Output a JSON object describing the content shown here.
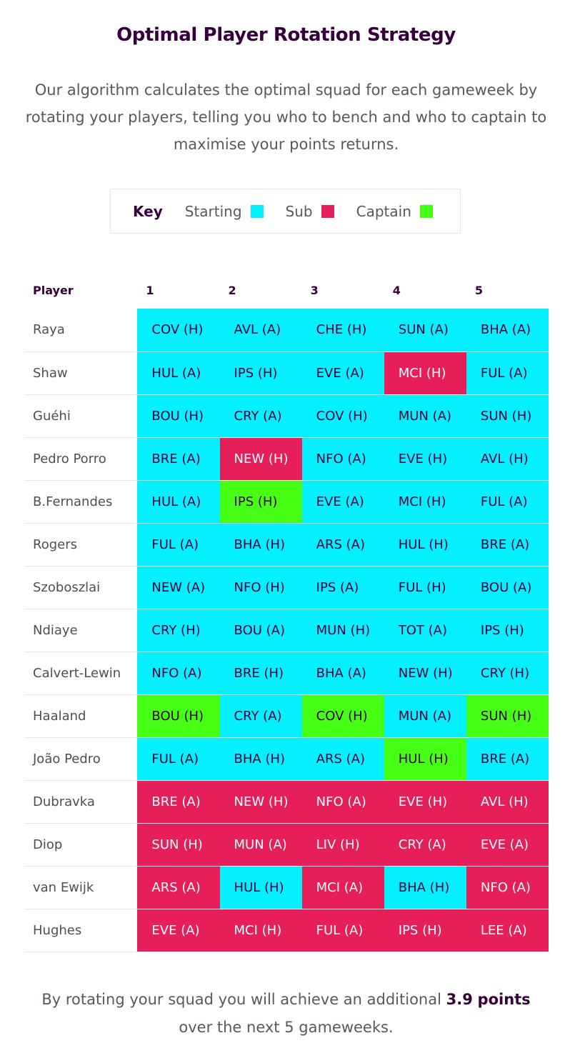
{
  "title": "Optimal Player Rotation Strategy",
  "intro": "Our algorithm calculates the optimal squad for each gameweek by rotating your players, telling you who to bench and who to captain to maximise your points returns.",
  "key": {
    "label": "Key",
    "items": [
      {
        "label": "Starting",
        "color": "#05f0ff"
      },
      {
        "label": "Sub",
        "color": "#e61f5a"
      },
      {
        "label": "Captain",
        "color": "#45ff14"
      }
    ]
  },
  "colors": {
    "starting": "#05f0ff",
    "sub": "#e61f5a",
    "captain": "#45ff14"
  },
  "table": {
    "headers": [
      "Player",
      "1",
      "2",
      "3",
      "4",
      "5"
    ],
    "rows": [
      {
        "player": "Raya",
        "cells": [
          {
            "fixture": "COV (H)",
            "status": "starting"
          },
          {
            "fixture": "AVL (A)",
            "status": "starting"
          },
          {
            "fixture": "CHE (H)",
            "status": "starting"
          },
          {
            "fixture": "SUN (A)",
            "status": "starting"
          },
          {
            "fixture": "BHA (A)",
            "status": "starting"
          }
        ]
      },
      {
        "player": "Shaw",
        "cells": [
          {
            "fixture": "HUL (A)",
            "status": "starting"
          },
          {
            "fixture": "IPS (H)",
            "status": "starting"
          },
          {
            "fixture": "EVE (A)",
            "status": "starting"
          },
          {
            "fixture": "MCI (H)",
            "status": "sub"
          },
          {
            "fixture": "FUL (A)",
            "status": "starting"
          }
        ]
      },
      {
        "player": "Guéhi",
        "cells": [
          {
            "fixture": "BOU (H)",
            "status": "starting"
          },
          {
            "fixture": "CRY (A)",
            "status": "starting"
          },
          {
            "fixture": "COV (H)",
            "status": "starting"
          },
          {
            "fixture": "MUN (A)",
            "status": "starting"
          },
          {
            "fixture": "SUN (H)",
            "status": "starting"
          }
        ]
      },
      {
        "player": "Pedro Porro",
        "cells": [
          {
            "fixture": "BRE (A)",
            "status": "starting"
          },
          {
            "fixture": "NEW (H)",
            "status": "sub"
          },
          {
            "fixture": "NFO (A)",
            "status": "starting"
          },
          {
            "fixture": "EVE (H)",
            "status": "starting"
          },
          {
            "fixture": "AVL (H)",
            "status": "starting"
          }
        ]
      },
      {
        "player": "B.Fernandes",
        "cells": [
          {
            "fixture": "HUL (A)",
            "status": "starting"
          },
          {
            "fixture": "IPS (H)",
            "status": "captain"
          },
          {
            "fixture": "EVE (A)",
            "status": "starting"
          },
          {
            "fixture": "MCI (H)",
            "status": "starting"
          },
          {
            "fixture": "FUL (A)",
            "status": "starting"
          }
        ]
      },
      {
        "player": "Rogers",
        "cells": [
          {
            "fixture": "FUL (A)",
            "status": "starting"
          },
          {
            "fixture": "BHA (H)",
            "status": "starting"
          },
          {
            "fixture": "ARS (A)",
            "status": "starting"
          },
          {
            "fixture": "HUL (H)",
            "status": "starting"
          },
          {
            "fixture": "BRE (A)",
            "status": "starting"
          }
        ]
      },
      {
        "player": "Szoboszlai",
        "cells": [
          {
            "fixture": "NEW (A)",
            "status": "starting"
          },
          {
            "fixture": "NFO (H)",
            "status": "starting"
          },
          {
            "fixture": "IPS (A)",
            "status": "starting"
          },
          {
            "fixture": "FUL (H)",
            "status": "starting"
          },
          {
            "fixture": "BOU (A)",
            "status": "starting"
          }
        ]
      },
      {
        "player": "Ndiaye",
        "cells": [
          {
            "fixture": "CRY (H)",
            "status": "starting"
          },
          {
            "fixture": "BOU (A)",
            "status": "starting"
          },
          {
            "fixture": "MUN (H)",
            "status": "starting"
          },
          {
            "fixture": "TOT (A)",
            "status": "starting"
          },
          {
            "fixture": "IPS (H)",
            "status": "starting"
          }
        ]
      },
      {
        "player": "Calvert-Lewin",
        "cells": [
          {
            "fixture": "NFO (A)",
            "status": "starting"
          },
          {
            "fixture": "BRE (H)",
            "status": "starting"
          },
          {
            "fixture": "BHA (A)",
            "status": "starting"
          },
          {
            "fixture": "NEW (H)",
            "status": "starting"
          },
          {
            "fixture": "CRY (H)",
            "status": "starting"
          }
        ]
      },
      {
        "player": "Haaland",
        "cells": [
          {
            "fixture": "BOU (H)",
            "status": "captain"
          },
          {
            "fixture": "CRY (A)",
            "status": "starting"
          },
          {
            "fixture": "COV (H)",
            "status": "captain"
          },
          {
            "fixture": "MUN (A)",
            "status": "starting"
          },
          {
            "fixture": "SUN (H)",
            "status": "captain"
          }
        ]
      },
      {
        "player": "João Pedro",
        "cells": [
          {
            "fixture": "FUL (A)",
            "status": "starting"
          },
          {
            "fixture": "BHA (H)",
            "status": "starting"
          },
          {
            "fixture": "ARS (A)",
            "status": "starting"
          },
          {
            "fixture": "HUL (H)",
            "status": "captain"
          },
          {
            "fixture": "BRE (A)",
            "status": "starting"
          }
        ]
      },
      {
        "player": "Dubravka",
        "cells": [
          {
            "fixture": "BRE (A)",
            "status": "sub"
          },
          {
            "fixture": "NEW (H)",
            "status": "sub"
          },
          {
            "fixture": "NFO (A)",
            "status": "sub"
          },
          {
            "fixture": "EVE (H)",
            "status": "sub"
          },
          {
            "fixture": "AVL (H)",
            "status": "sub"
          }
        ]
      },
      {
        "player": "Diop",
        "cells": [
          {
            "fixture": "SUN (H)",
            "status": "sub"
          },
          {
            "fixture": "MUN (A)",
            "status": "sub"
          },
          {
            "fixture": "LIV (H)",
            "status": "sub"
          },
          {
            "fixture": "CRY (A)",
            "status": "sub"
          },
          {
            "fixture": "EVE (A)",
            "status": "sub"
          }
        ]
      },
      {
        "player": "van Ewijk",
        "cells": [
          {
            "fixture": "ARS (A)",
            "status": "sub"
          },
          {
            "fixture": "HUL (H)",
            "status": "starting"
          },
          {
            "fixture": "MCI (A)",
            "status": "sub"
          },
          {
            "fixture": "BHA (H)",
            "status": "starting"
          },
          {
            "fixture": "NFO (A)",
            "status": "sub"
          }
        ]
      },
      {
        "player": "Hughes",
        "cells": [
          {
            "fixture": "EVE (A)",
            "status": "sub"
          },
          {
            "fixture": "MCI (H)",
            "status": "sub"
          },
          {
            "fixture": "FUL (A)",
            "status": "sub"
          },
          {
            "fixture": "IPS (H)",
            "status": "sub"
          },
          {
            "fixture": "LEE (A)",
            "status": "sub"
          }
        ]
      }
    ]
  },
  "summary": {
    "prefix": "By rotating your squad you will achieve an additional",
    "value": "3.9",
    "unit": "points",
    "suffix": "over the next 5 gameweeks."
  }
}
